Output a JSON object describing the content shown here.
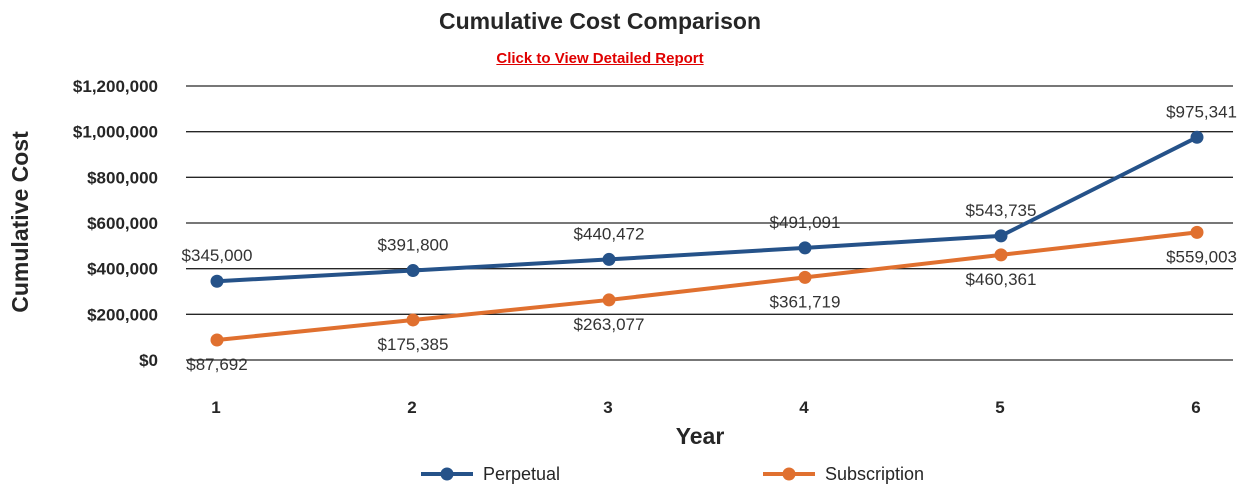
{
  "chart_data": {
    "type": "line",
    "title": "Cumulative Cost Comparison",
    "subtitle_link": "Click to View Detailed Report",
    "xlabel": "Year",
    "ylabel": "Cumulative Cost",
    "x": [
      1,
      2,
      3,
      4,
      5,
      6
    ],
    "x_tick_labels": [
      "1",
      "2",
      "3",
      "4",
      "5",
      "6"
    ],
    "ylim": [
      0,
      1200000
    ],
    "y_ticks": [
      0,
      200000,
      400000,
      600000,
      800000,
      1000000,
      1200000
    ],
    "y_tick_labels": [
      "$0",
      "$200,000",
      "$400,000",
      "$600,000",
      "$800,000",
      "$1,000,000",
      "$1,200,000"
    ],
    "grid": true,
    "legend_position": "bottom",
    "series": [
      {
        "name": "Perpetual",
        "color": "#255289",
        "label_position": "above",
        "values": [
          345000,
          391800,
          440472,
          491091,
          543735,
          975341
        ],
        "labels": [
          "$345,000",
          "$391,800",
          "$440,472",
          "$491,091",
          "$543,735",
          "$975,341"
        ]
      },
      {
        "name": "Subscription",
        "color": "#e0702f",
        "label_position": "below",
        "values": [
          87692,
          175385,
          263077,
          361719,
          460361,
          559003
        ],
        "labels": [
          "$87,692",
          "$175,385",
          "$263,077",
          "$361,719",
          "$460,361",
          "$559,003"
        ]
      }
    ]
  }
}
